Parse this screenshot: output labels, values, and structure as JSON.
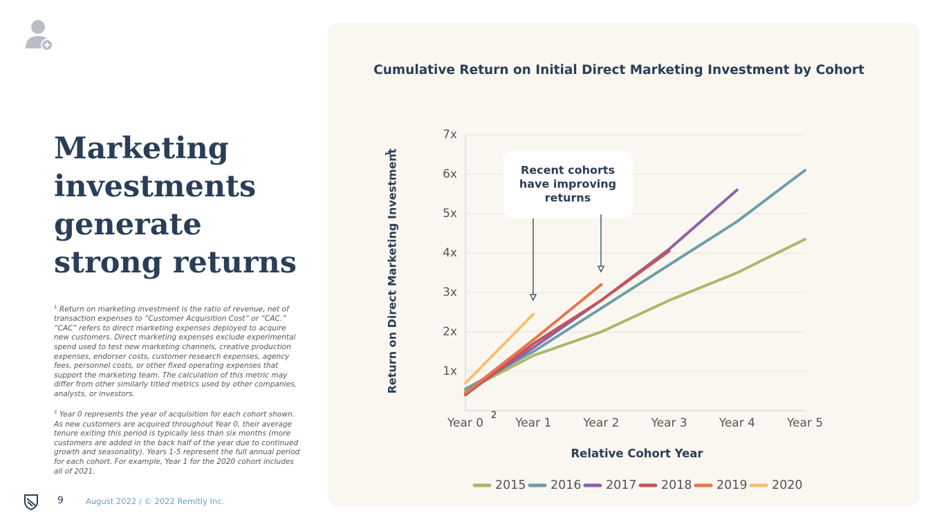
{
  "slide": {
    "heading": "Marketing investments generate strong returns",
    "footnotes": [
      {
        "marker": "1",
        "text": "Return on marketing investment is the ratio of revenue, net of transaction expenses to “Customer Acquisition Cost” or “CAC.” “CAC” refers to direct marketing expenses deployed to acquire new customers. Direct marketing expenses exclude experimental spend used to test new marketing channels, creative production expenses, endorser costs, customer research expenses, agency fees, personnel costs, or other fixed operating expenses that support the marketing team. The calculation of this metric may differ from other similarly titled metrics used by other companies, analysts, or investors."
      },
      {
        "marker": "2",
        "text": "Year 0 represents the year of acquisition for each cohort shown. As new customers are acquired throughout Year 0, their average tenure exiting this period is typically less than six months (more customers are added in the back half of the year due to continued growth and seasonality). Years 1-5 represent the full annual period for each cohort. For example, Year 1 for the 2020 cohort includes all of 2021."
      }
    ],
    "page_number": "9",
    "footer": "August 2022 / © 2022 Remitly Inc."
  },
  "chart_data": {
    "type": "line",
    "title": "Cumulative Return on Initial Direct Marketing Investment by Cohort",
    "y_label": "Return on Direct Marketing Investment",
    "y_label_note": "1",
    "x_label": "Relative Cohort Year",
    "x_tick_note": "2",
    "annotation": [
      "Recent cohorts",
      "have improving",
      "returns"
    ],
    "categories": [
      "Year 0",
      "Year 1",
      "Year 2",
      "Year 3",
      "Year 4",
      "Year 5"
    ],
    "series": [
      {
        "name": "2015",
        "color": "#a9b86b",
        "values": [
          0.5,
          1.4,
          2.0,
          2.8,
          3.5,
          4.35
        ]
      },
      {
        "name": "2016",
        "color": "#6d9da9",
        "values": [
          0.55,
          1.5,
          2.6,
          3.7,
          4.8,
          6.1
        ]
      },
      {
        "name": "2017",
        "color": "#8d62a9",
        "values": [
          0.45,
          1.6,
          2.8,
          4.1,
          5.6,
          null
        ]
      },
      {
        "name": "2018",
        "color": "#c4545a",
        "values": [
          0.4,
          1.7,
          2.8,
          4.05,
          null,
          null
        ]
      },
      {
        "name": "2019",
        "color": "#e8754f",
        "values": [
          0.45,
          1.8,
          3.2,
          null,
          null,
          null
        ]
      },
      {
        "name": "2020",
        "color": "#f6c070",
        "values": [
          0.7,
          2.45,
          null,
          null,
          null,
          null
        ]
      }
    ],
    "ylim": [
      0,
      7
    ],
    "yticks": [
      {
        "value": 1,
        "label": "1x"
      },
      {
        "value": 2,
        "label": "2x"
      },
      {
        "value": 3,
        "label": "3x"
      },
      {
        "value": 4,
        "label": "4x"
      },
      {
        "value": 5,
        "label": "5x"
      },
      {
        "value": 6,
        "label": "6x"
      },
      {
        "value": 7,
        "label": "7x"
      }
    ],
    "grid": true,
    "legend": "bottom"
  }
}
